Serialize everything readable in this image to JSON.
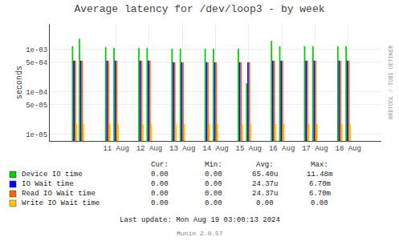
{
  "chart_data": {
    "type": "bar",
    "title": "Average latency for /dev/loop3 - by week",
    "ylabel": "seconds",
    "log": "y",
    "grid": true,
    "x": [
      1723226400,
      1723244400,
      1723312800,
      1723334400,
      1723399200,
      1723420800,
      1723485600,
      1723507200,
      1723572000,
      1723593600,
      1723658400,
      1723680000,
      1723744800,
      1723766400,
      1723831200,
      1723852800,
      1723917600,
      1723939200
    ],
    "xlim": [
      1723161600,
      1724025600
    ],
    "xticks": [
      {
        "value": 1723334400,
        "label": "11 Aug"
      },
      {
        "value": 1723420800,
        "label": "12 Aug"
      },
      {
        "value": 1723507200,
        "label": "13 Aug"
      },
      {
        "value": 1723593600,
        "label": "14 Aug"
      },
      {
        "value": 1723680000,
        "label": "15 Aug"
      },
      {
        "value": 1723766400,
        "label": "16 Aug"
      },
      {
        "value": 1723852800,
        "label": "17 Aug"
      },
      {
        "value": 1723939200,
        "label": "18 Aug"
      }
    ],
    "ylim": [
      7e-06,
      0.004
    ],
    "yticks": [
      {
        "value": 1e-05,
        "label": "1e-05"
      },
      {
        "value": 5e-05,
        "label": "5e-05"
      },
      {
        "value": 0.0001,
        "label": "1e-04"
      },
      {
        "value": 0.0005,
        "label": "5e-04"
      },
      {
        "value": 0.001,
        "label": "1e-03"
      }
    ],
    "series": [
      {
        "name": "Device IO time",
        "color": "#00cc00",
        "values": [
          0.0012,
          0.0018,
          0.00115,
          0.0011,
          0.0011,
          0.0011,
          0.00105,
          0.00105,
          0.00105,
          0.00105,
          0.00105,
          0.00016,
          0.0016,
          0.0012,
          0.0012,
          0.0012,
          0.0012,
          0.0012
        ],
        "stats": [
          "0.00",
          "0.00",
          "65.40u",
          "11.48m"
        ]
      },
      {
        "name": "IO Wait time",
        "color": "#0000ff",
        "values": [
          0.00055,
          0.00055,
          0.00055,
          0.00055,
          0.00055,
          0.00055,
          0.0005,
          0.0005,
          0.0005,
          0.0005,
          0.0005,
          0.0005,
          0.00055,
          0.00055,
          0.00055,
          0.00055,
          0.00055,
          0.00055
        ],
        "stats": [
          "0.00",
          "0.00",
          "24.37u",
          "6.70m"
        ]
      },
      {
        "name": "Read IO Wait time",
        "color": "#ff6600",
        "values": [
          0.00055,
          0.00055,
          0.00055,
          0.00055,
          0.00055,
          0.00055,
          0.0005,
          0.0005,
          0.0005,
          0.0005,
          0.0005,
          0.0005,
          0.00055,
          0.00055,
          0.00055,
          0.00055,
          0.00055,
          0.00055
        ],
        "stats": [
          "0.00",
          "0.00",
          "24.37u",
          "6.70m"
        ]
      },
      {
        "name": "Write IO Wait time",
        "color": "#ffcc00",
        "values": [
          1.75e-05,
          1.75e-05,
          1.75e-05,
          1.75e-05,
          1.75e-05,
          1.75e-05,
          1.75e-05,
          1.75e-05,
          1.75e-05,
          1.75e-05,
          1.75e-05,
          1.75e-05,
          1.75e-05,
          1.75e-05,
          1.75e-05,
          1.75e-05,
          1.75e-05,
          1.75e-05
        ],
        "stats": [
          "0.00",
          "0.00",
          "0.00",
          "0.00"
        ]
      }
    ],
    "stats_header": [
      "Cur:",
      "Min:",
      "Avg:",
      "Max:"
    ],
    "annotations": [
      "Last update: Mon Aug 19 03:00:13 2024",
      "Munin 2.0.57",
      "RRDTOOL / TOBI OETIKER"
    ]
  }
}
